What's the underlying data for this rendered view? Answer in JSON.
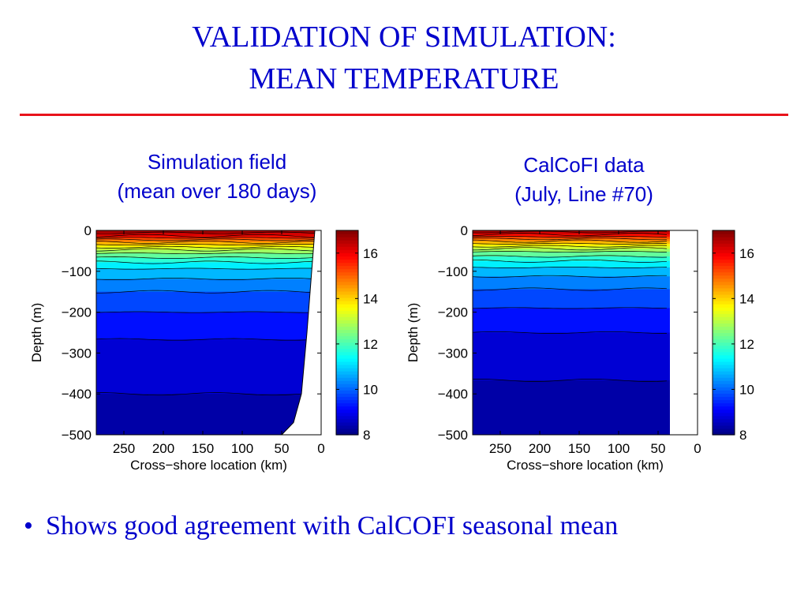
{
  "slide": {
    "title_line1": "VALIDATION OF SIMULATION:",
    "title_line2": "MEAN TEMPERATURE",
    "bullet_marker": "•",
    "bullet_text": "Shows good agreement with CalCOFI seasonal mean",
    "accent_color": "#e8131b",
    "text_color": "#0000cc"
  },
  "chart_data": [
    {
      "type": "heatmap",
      "panel_title_line1": "Simulation field",
      "panel_title_line2": "(mean over 180 days)",
      "xlabel": "Cross−shore location (km)",
      "ylabel": "Depth (m)",
      "xlim": [
        285,
        0
      ],
      "ylim": [
        -500,
        0
      ],
      "x_ticks": [
        250,
        200,
        150,
        100,
        50,
        0
      ],
      "x_tick_labels": [
        "250",
        "200",
        "150",
        "100",
        "50",
        "0"
      ],
      "y_ticks": [
        0,
        -100,
        -200,
        -300,
        -400,
        -500
      ],
      "y_tick_labels": [
        "0",
        "−100",
        "−200",
        "−300",
        "−400",
        "−500"
      ],
      "colorbar": {
        "range": [
          8,
          17
        ],
        "ticks": [
          16,
          14,
          12,
          10,
          8
        ],
        "tick_labels": [
          "16",
          "14",
          "12",
          "10",
          "8"
        ]
      },
      "contour_interval": 0.5,
      "temperature_profile": [
        {
          "depth": 0,
          "temp": 16.8
        },
        {
          "depth": -10,
          "temp": 16.3
        },
        {
          "depth": -25,
          "temp": 14.8
        },
        {
          "depth": -50,
          "temp": 12.8
        },
        {
          "depth": -75,
          "temp": 11.6
        },
        {
          "depth": -100,
          "temp": 10.8
        },
        {
          "depth": -150,
          "temp": 10.0
        },
        {
          "depth": -200,
          "temp": 9.5
        },
        {
          "depth": -250,
          "temp": 9.1
        },
        {
          "depth": -300,
          "temp": 8.8
        },
        {
          "depth": -400,
          "temp": 8.5
        },
        {
          "depth": -500,
          "temp": 8.2
        }
      ],
      "bathymetry": [
        {
          "x": 8,
          "depth": 0
        },
        {
          "x": 12,
          "depth": -100
        },
        {
          "x": 18,
          "depth": -250
        },
        {
          "x": 25,
          "depth": -400
        },
        {
          "x": 35,
          "depth": -470
        },
        {
          "x": 50,
          "depth": -500
        }
      ]
    },
    {
      "type": "heatmap",
      "panel_title_line1": "CalCoFI data",
      "panel_title_line2": "(July, Line #70)",
      "xlabel": "Cross−shore location (km)",
      "ylabel": "Depth (m)",
      "xlim": [
        285,
        0
      ],
      "ylim": [
        -500,
        0
      ],
      "data_xlim": [
        285,
        35
      ],
      "x_ticks": [
        250,
        200,
        150,
        100,
        50,
        0
      ],
      "x_tick_labels": [
        "250",
        "200",
        "150",
        "100",
        "50",
        "0"
      ],
      "y_ticks": [
        0,
        -100,
        -200,
        -300,
        -400,
        -500
      ],
      "y_tick_labels": [
        "0",
        "−100",
        "−200",
        "−300",
        "−400",
        "−500"
      ],
      "colorbar": {
        "range": [
          8,
          17
        ],
        "ticks": [
          16,
          14,
          12,
          10,
          8
        ],
        "tick_labels": [
          "16",
          "14",
          "12",
          "10",
          "8"
        ]
      },
      "contour_interval": 0.5,
      "temperature_profile": [
        {
          "depth": 0,
          "temp": 16.8
        },
        {
          "depth": -10,
          "temp": 16.0
        },
        {
          "depth": -25,
          "temp": 14.6
        },
        {
          "depth": -50,
          "temp": 12.6
        },
        {
          "depth": -75,
          "temp": 11.5
        },
        {
          "depth": -100,
          "temp": 10.7
        },
        {
          "depth": -150,
          "temp": 9.9
        },
        {
          "depth": -200,
          "temp": 9.4
        },
        {
          "depth": -250,
          "temp": 9.0
        },
        {
          "depth": -300,
          "temp": 8.7
        },
        {
          "depth": -400,
          "temp": 8.4
        },
        {
          "depth": -500,
          "temp": 8.2
        }
      ]
    }
  ]
}
